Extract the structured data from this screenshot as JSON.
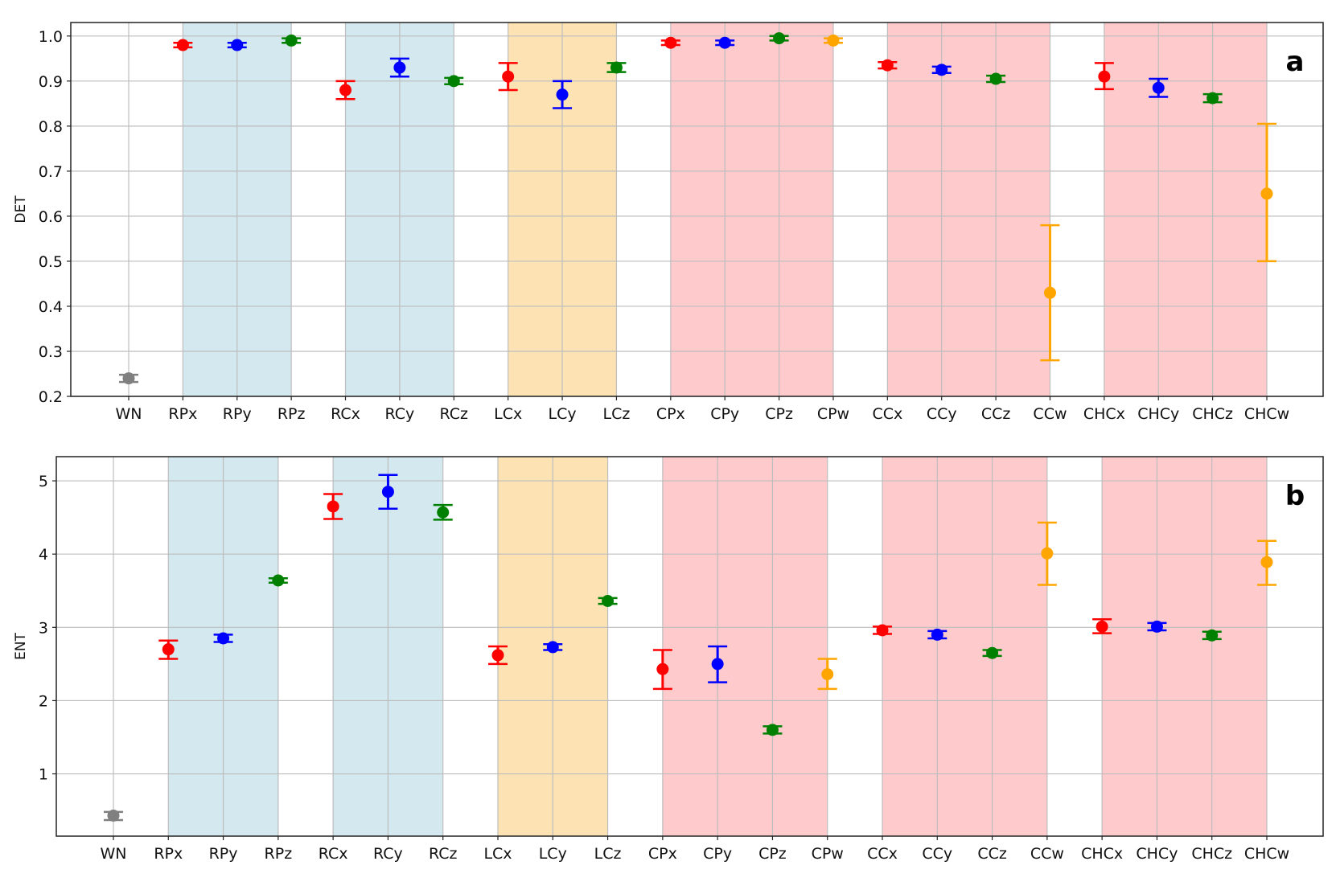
{
  "colors": {
    "x": "#ff0000",
    "y": "#0000ff",
    "z": "#008000",
    "w": "#ffa500",
    "wn": "#808080",
    "band_blue": "#d3e8ef",
    "band_orange": "#fde3b4",
    "band_pink": "#fecacb"
  },
  "chart_data": [
    {
      "type": "scatter",
      "panel_label": "a",
      "title": "",
      "xlabel": "",
      "ylabel": "DET",
      "ylim": [
        0.2,
        1.03
      ],
      "yticks": [
        0.2,
        0.3,
        0.4,
        0.5,
        0.6,
        0.7,
        0.8,
        0.9,
        1.0
      ],
      "ytick_labels": [
        "0.2",
        "0.3",
        "0.4",
        "0.5",
        "0.6",
        "0.7",
        "0.8",
        "0.9",
        "1.0"
      ],
      "grid": true,
      "categories": [
        "WN",
        "RPx",
        "RPy",
        "RPz",
        "RCx",
        "RCy",
        "RCz",
        "LCx",
        "LCy",
        "LCz",
        "CPx",
        "CPy",
        "CPz",
        "CPw",
        "CCx",
        "CCy",
        "CCz",
        "CCw",
        "CHCx",
        "CHCy",
        "CHCz",
        "CHCw"
      ],
      "color_keys": [
        "wn",
        "x",
        "y",
        "z",
        "x",
        "y",
        "z",
        "x",
        "y",
        "z",
        "x",
        "y",
        "z",
        "w",
        "x",
        "y",
        "z",
        "w",
        "x",
        "y",
        "z",
        "w"
      ],
      "bands": [
        {
          "from": 1,
          "to": 3,
          "color_key": "band_blue"
        },
        {
          "from": 4,
          "to": 6,
          "color_key": "band_blue"
        },
        {
          "from": 7,
          "to": 9,
          "color_key": "band_orange"
        },
        {
          "from": 10,
          "to": 13,
          "color_key": "band_pink"
        },
        {
          "from": 14,
          "to": 17,
          "color_key": "band_pink"
        },
        {
          "from": 18,
          "to": 21,
          "color_key": "band_pink"
        }
      ],
      "values": [
        0.24,
        0.98,
        0.98,
        0.99,
        0.88,
        0.93,
        0.9,
        0.91,
        0.87,
        0.93,
        0.985,
        0.985,
        0.995,
        0.99,
        0.935,
        0.925,
        0.905,
        0.43,
        0.91,
        0.885,
        0.862,
        0.65
      ],
      "err_low": [
        0.232,
        0.975,
        0.975,
        0.985,
        0.86,
        0.91,
        0.893,
        0.88,
        0.84,
        0.92,
        0.98,
        0.98,
        0.99,
        0.985,
        0.928,
        0.918,
        0.898,
        0.28,
        0.882,
        0.865,
        0.853,
        0.5
      ],
      "err_high": [
        0.248,
        0.985,
        0.985,
        0.995,
        0.9,
        0.95,
        0.907,
        0.94,
        0.9,
        0.94,
        0.99,
        0.99,
        1.0,
        0.995,
        0.942,
        0.932,
        0.912,
        0.58,
        0.94,
        0.905,
        0.871,
        0.805
      ]
    },
    {
      "type": "scatter",
      "panel_label": "b",
      "title": "",
      "xlabel": "",
      "ylabel": "ENT",
      "ylim": [
        0.15,
        5.33
      ],
      "yticks": [
        1,
        2,
        3,
        4,
        5
      ],
      "ytick_labels": [
        "1",
        "2",
        "3",
        "4",
        "5"
      ],
      "grid": true,
      "categories": [
        "WN",
        "RPx",
        "RPy",
        "RPz",
        "RCx",
        "RCy",
        "RCz",
        "LCx",
        "LCy",
        "LCz",
        "CPx",
        "CPy",
        "CPz",
        "CPw",
        "CCx",
        "CCy",
        "CCz",
        "CCw",
        "CHCx",
        "CHCy",
        "CHCz",
        "CHCw"
      ],
      "color_keys": [
        "wn",
        "x",
        "y",
        "z",
        "x",
        "y",
        "z",
        "x",
        "y",
        "z",
        "x",
        "y",
        "z",
        "w",
        "x",
        "y",
        "z",
        "w",
        "x",
        "y",
        "z",
        "w"
      ],
      "bands": [
        {
          "from": 1,
          "to": 3,
          "color_key": "band_blue"
        },
        {
          "from": 4,
          "to": 6,
          "color_key": "band_blue"
        },
        {
          "from": 7,
          "to": 9,
          "color_key": "band_orange"
        },
        {
          "from": 10,
          "to": 13,
          "color_key": "band_pink"
        },
        {
          "from": 14,
          "to": 17,
          "color_key": "band_pink"
        },
        {
          "from": 18,
          "to": 21,
          "color_key": "band_pink"
        }
      ],
      "values": [
        0.43,
        2.7,
        2.85,
        3.64,
        4.65,
        4.85,
        4.57,
        2.62,
        2.73,
        3.36,
        2.43,
        2.5,
        1.6,
        2.36,
        2.96,
        2.9,
        2.65,
        4.01,
        3.01,
        3.01,
        2.89,
        3.89
      ],
      "err_low": [
        0.37,
        2.57,
        2.8,
        3.61,
        4.48,
        4.62,
        4.47,
        2.5,
        2.69,
        3.32,
        2.16,
        2.25,
        1.55,
        2.16,
        2.91,
        2.85,
        2.61,
        3.58,
        2.92,
        2.96,
        2.84,
        3.58
      ],
      "err_high": [
        0.48,
        2.82,
        2.9,
        3.67,
        4.82,
        5.08,
        4.67,
        2.74,
        2.77,
        3.4,
        2.69,
        2.74,
        1.65,
        2.57,
        3.01,
        2.95,
        2.69,
        4.43,
        3.11,
        3.06,
        2.94,
        4.18
      ]
    }
  ]
}
